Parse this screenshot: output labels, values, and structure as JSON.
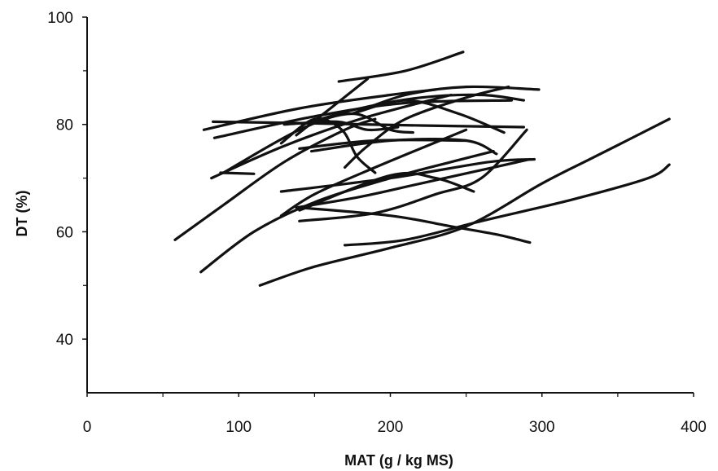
{
  "chart_data": {
    "type": "line",
    "title": "",
    "xlabel": "MAT (g / kg MS)",
    "ylabel": "DT (%)",
    "xlim": [
      0,
      400
    ],
    "ylim": [
      30,
      100
    ],
    "x_ticks": [
      0,
      100,
      200,
      300,
      400
    ],
    "x_minor_ticks": [
      50,
      150,
      250,
      350
    ],
    "y_ticks": [
      40,
      60,
      80,
      100
    ],
    "y_minor_ticks": [
      50,
      70,
      90
    ],
    "grid": false,
    "legend": "none",
    "color": "#111111",
    "series": [
      {
        "points": [
          [
            166,
            88
          ],
          [
            210,
            90
          ],
          [
            248,
            93.5
          ]
        ]
      },
      {
        "points": [
          [
            77,
            79
          ],
          [
            140,
            83
          ],
          [
            200,
            85.5
          ],
          [
            230,
            86.5
          ]
        ]
      },
      {
        "points": [
          [
            84,
            77.5
          ],
          [
            150,
            81.5
          ],
          [
            210,
            84
          ],
          [
            280,
            84.5
          ]
        ]
      },
      {
        "points": [
          [
            175,
            82
          ],
          [
            210,
            85.5
          ],
          [
            250,
            87
          ],
          [
            298,
            86.5
          ]
        ]
      },
      {
        "points": [
          [
            142,
            80
          ],
          [
            180,
            83
          ],
          [
            220,
            85
          ],
          [
            260,
            85.5
          ],
          [
            288,
            84.5
          ]
        ]
      },
      {
        "points": [
          [
            83,
            80.5
          ],
          [
            150,
            80.2
          ],
          [
            220,
            79.8
          ],
          [
            288,
            79.5
          ]
        ]
      },
      {
        "points": [
          [
            82,
            70
          ],
          [
            130,
            76
          ],
          [
            180,
            81
          ],
          [
            240,
            85.5
          ]
        ]
      },
      {
        "points": [
          [
            90,
            71
          ],
          [
            140,
            79
          ],
          [
            175,
            82
          ],
          [
            200,
            79
          ],
          [
            215,
            78.5
          ]
        ]
      },
      {
        "points": [
          [
            130,
            80
          ],
          [
            165,
            80.5
          ],
          [
            185,
            79
          ],
          [
            205,
            79.5
          ]
        ]
      },
      {
        "points": [
          [
            128,
            76.5
          ],
          [
            150,
            81
          ],
          [
            168,
            79
          ],
          [
            178,
            74
          ],
          [
            190,
            71
          ]
        ]
      },
      {
        "points": [
          [
            138,
            78
          ],
          [
            165,
            84
          ],
          [
            185,
            88.5
          ]
        ]
      },
      {
        "points": [
          [
            148,
            75
          ],
          [
            200,
            77
          ],
          [
            250,
            77
          ],
          [
            270,
            74.5
          ]
        ]
      },
      {
        "points": [
          [
            170,
            72
          ],
          [
            185,
            76
          ],
          [
            210,
            81
          ],
          [
            250,
            85
          ],
          [
            278,
            87
          ]
        ]
      },
      {
        "points": [
          [
            175,
            82
          ],
          [
            210,
            84.5
          ],
          [
            245,
            82
          ],
          [
            275,
            78.5
          ]
        ]
      },
      {
        "points": [
          [
            140,
            75.5
          ],
          [
            190,
            77
          ],
          [
            250,
            77
          ]
        ]
      },
      {
        "points": [
          [
            88,
            71
          ],
          [
            110,
            70.8
          ]
        ]
      },
      {
        "points": [
          [
            58,
            58.5
          ],
          [
            90,
            65
          ],
          [
            130,
            73
          ],
          [
            170,
            79
          ],
          [
            190,
            81
          ]
        ]
      },
      {
        "points": [
          [
            75,
            52.5
          ],
          [
            110,
            60
          ],
          [
            150,
            65.5
          ],
          [
            200,
            70
          ],
          [
            240,
            73
          ],
          [
            268,
            75
          ]
        ]
      },
      {
        "points": [
          [
            128,
            67.5
          ],
          [
            200,
            70
          ],
          [
            265,
            73
          ],
          [
            295,
            73.5
          ]
        ]
      },
      {
        "points": [
          [
            128,
            63
          ],
          [
            150,
            67
          ],
          [
            190,
            72
          ],
          [
            250,
            79
          ]
        ]
      },
      {
        "points": [
          [
            138,
            64.5
          ],
          [
            180,
            66.5
          ],
          [
            220,
            69
          ],
          [
            260,
            71.5
          ],
          [
            292,
            73.5
          ]
        ]
      },
      {
        "points": [
          [
            140,
            62
          ],
          [
            190,
            63.5
          ],
          [
            230,
            67
          ],
          [
            260,
            70
          ],
          [
            290,
            79
          ]
        ]
      },
      {
        "points": [
          [
            140,
            64
          ],
          [
            200,
            70.5
          ],
          [
            230,
            70
          ],
          [
            255,
            67.5
          ]
        ]
      },
      {
        "points": [
          [
            140,
            64.5
          ],
          [
            200,
            63
          ],
          [
            240,
            61
          ],
          [
            270,
            59.5
          ],
          [
            292,
            58
          ]
        ]
      },
      {
        "points": [
          [
            170,
            57.5
          ],
          [
            210,
            58.5
          ],
          [
            260,
            62
          ],
          [
            320,
            66
          ],
          [
            370,
            70
          ],
          [
            384,
            72.5
          ]
        ]
      },
      {
        "points": [
          [
            114,
            50
          ],
          [
            150,
            53.5
          ],
          [
            200,
            57
          ],
          [
            250,
            61
          ],
          [
            300,
            69
          ],
          [
            335,
            74
          ],
          [
            384,
            81
          ]
        ]
      }
    ]
  }
}
